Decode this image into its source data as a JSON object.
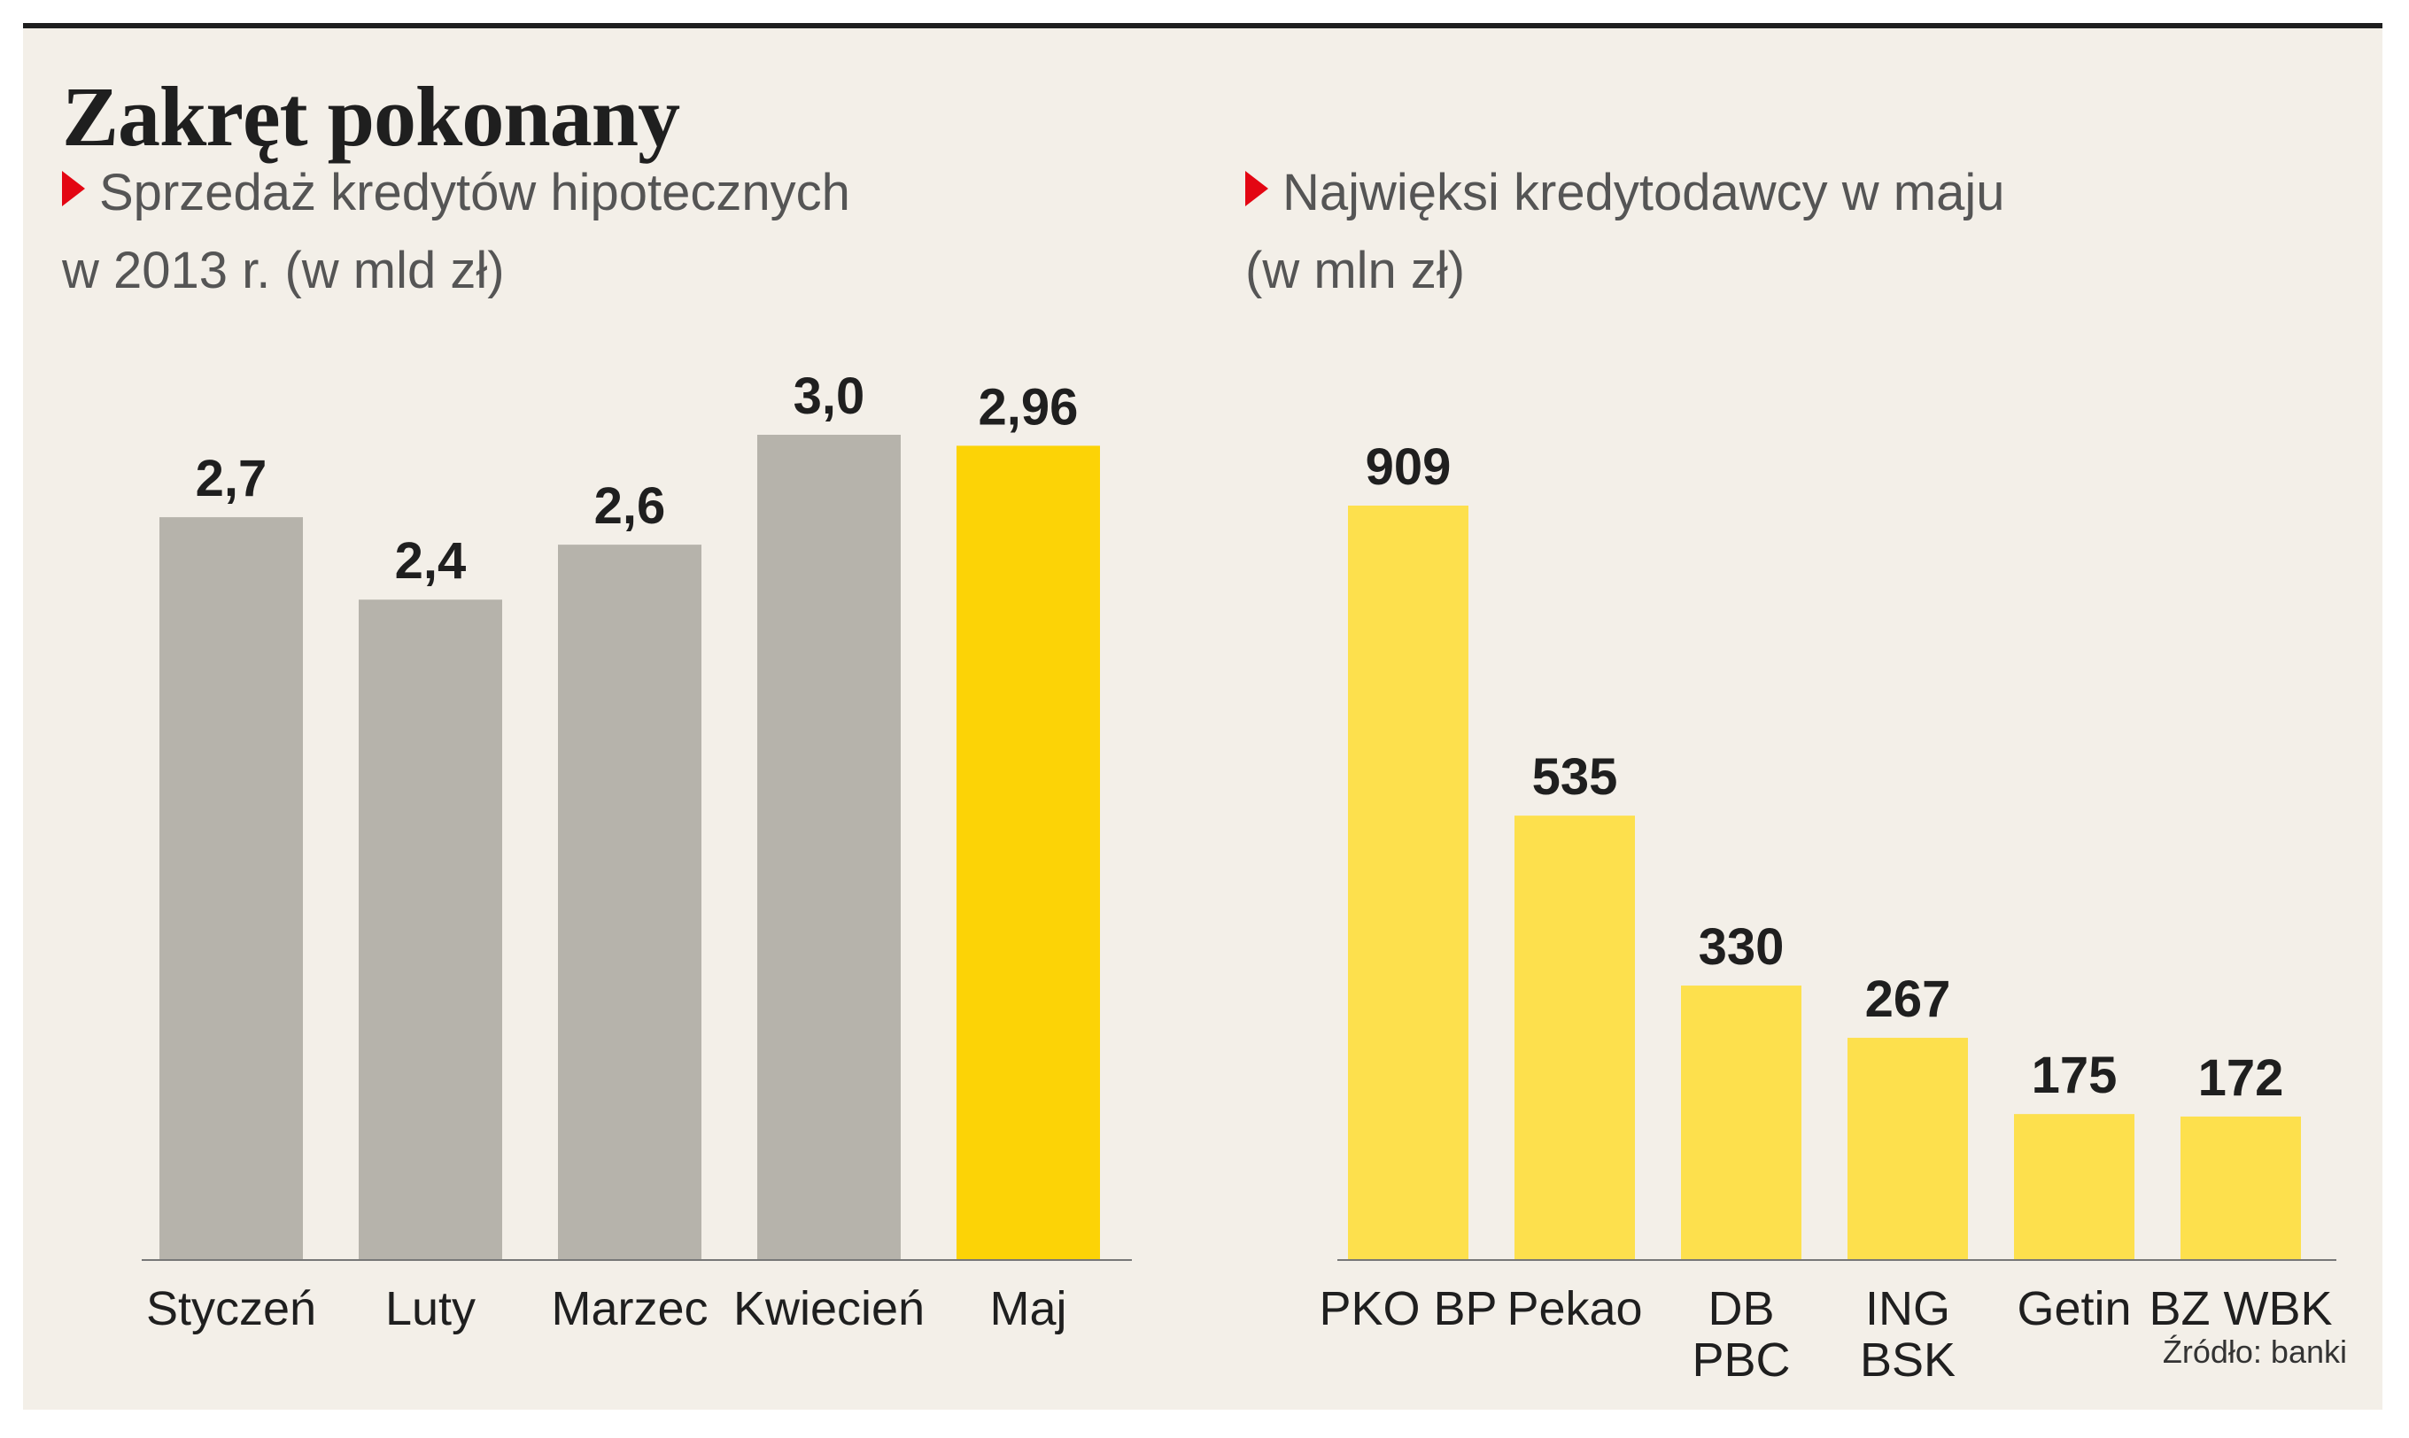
{
  "title": "Zakręt pokonany",
  "source": "Źródło: banki",
  "colors": {
    "gray_bar": "#b6b3ab",
    "highlight_bar": "#fcd306",
    "yellow_bar": "#fde04d",
    "marker": "#e30613",
    "background": "#f3efe8"
  },
  "chart_data": [
    {
      "type": "bar",
      "subtitle": [
        "Sprzedaż kredytów hipotecznych",
        "w 2013 r. (w mld zł)"
      ],
      "categories": [
        "Styczeń",
        "Luty",
        "Marzec",
        "Kwiecień",
        "Maj"
      ],
      "values": [
        2.7,
        2.4,
        2.6,
        3.0,
        2.96
      ],
      "value_labels": [
        "2,7",
        "2,4",
        "2,6",
        "3,0",
        "2,96"
      ],
      "highlight_index": 4,
      "ylim": [
        0,
        3.0
      ]
    },
    {
      "type": "bar",
      "subtitle": [
        "Najwięksi kredytodawcy w maju",
        "(w mln zł)"
      ],
      "categories": [
        [
          "PKO BP"
        ],
        [
          "Pekao"
        ],
        [
          "DB",
          "PBC"
        ],
        [
          "ING",
          "BSK"
        ],
        [
          "Getin"
        ],
        [
          "BZ WBK"
        ]
      ],
      "values": [
        909,
        535,
        330,
        267,
        175,
        172
      ],
      "value_labels": [
        "909",
        "535",
        "330",
        "267",
        "175",
        "172"
      ],
      "ylim": [
        0,
        909
      ]
    }
  ]
}
